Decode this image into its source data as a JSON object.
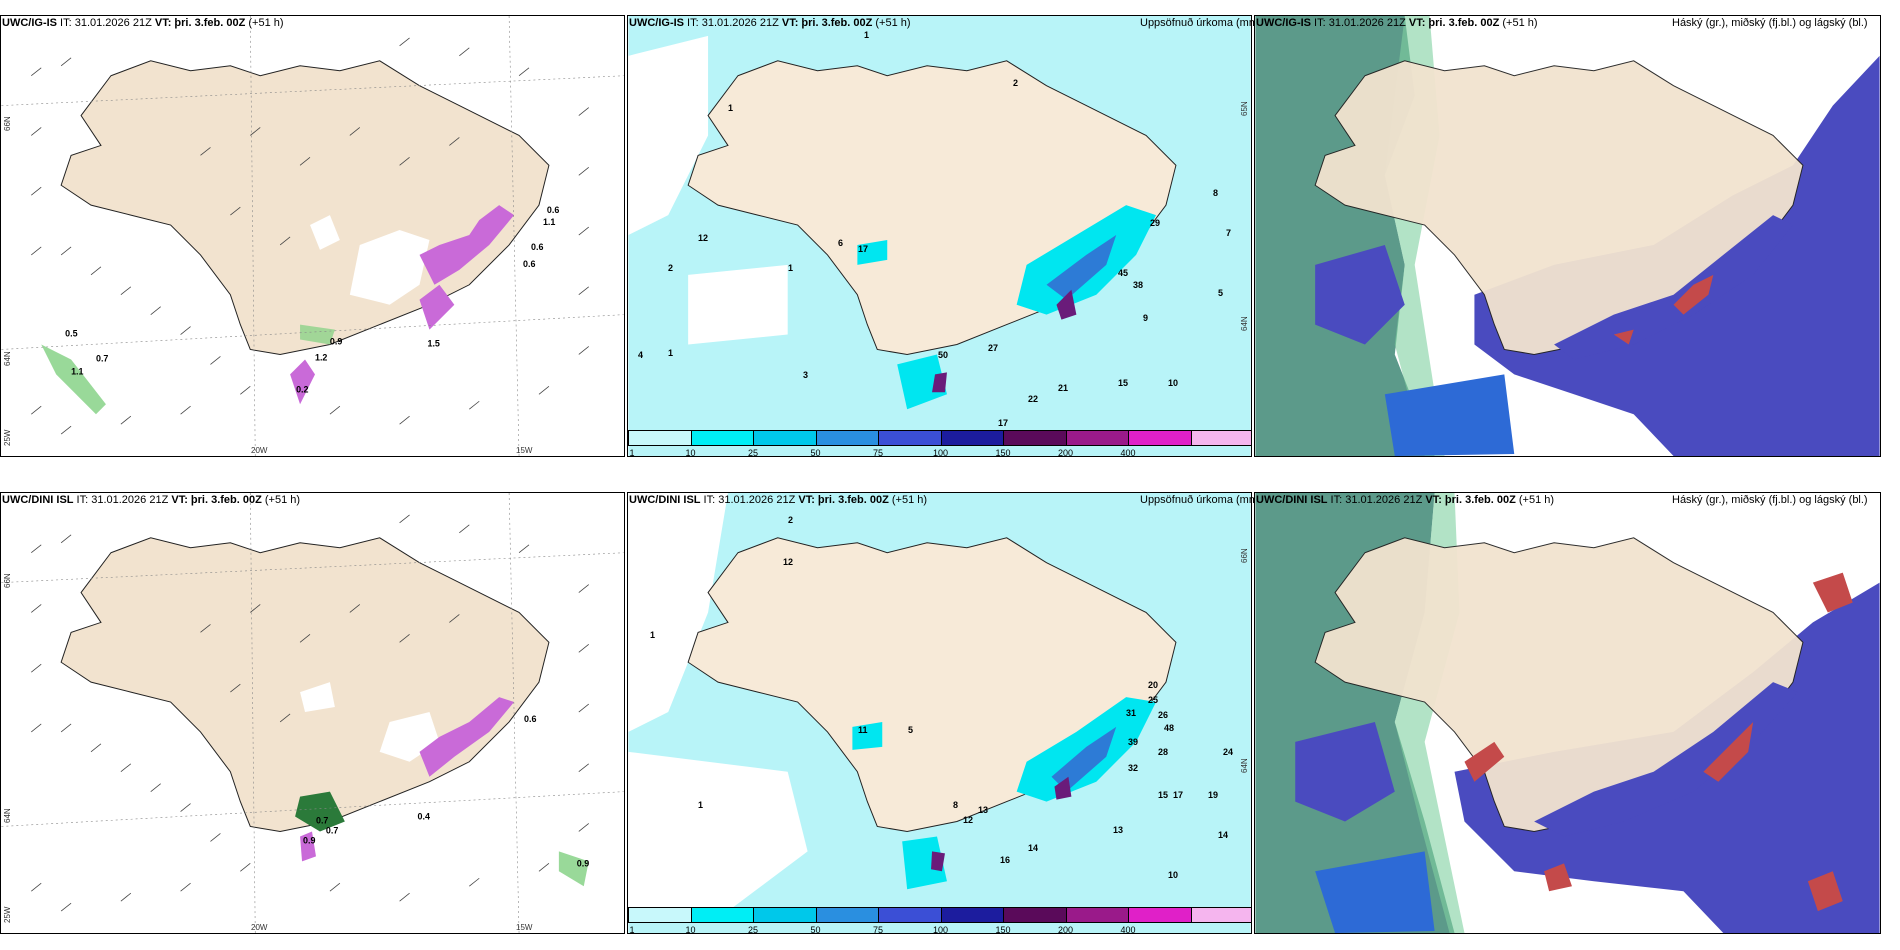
{
  "colors": {
    "land": "#f2e3cf",
    "sea_precip_light": "#b8f4f8",
    "precip_cyan": "#00e6f0",
    "precip_blue": "#2d7bd6",
    "precip_purple": "#6a1b7a",
    "precip_magenta": "#e52bd6",
    "cloud_high": "#5c9a8a",
    "cloud_mid": "#4a4bbf",
    "cloud_low": "#c44a4a",
    "snow_pink": "#c96ad8",
    "green_precip": "#7fd07f"
  },
  "rows": [
    {
      "model": "UWC/IG-IS",
      "panels": [
        {
          "title_model": "UWC/IG-IS",
          "it_label": " IT: 31.01.2026 21Z ",
          "vt_label": "VT: þri. 3.feb. 00Z",
          "lead": " (+51 h)",
          "right_title": "",
          "axis": {
            "lat_top": "66N",
            "lat_mid": "64N",
            "lon_a": "25W",
            "lon_b": "20W",
            "lon_c": "15W"
          },
          "values": [
            "0.5",
            "0.7",
            "1.1",
            "0.2",
            "1.2",
            "0.6",
            "1.1",
            "1.5",
            "0.9",
            "0.6",
            "0.6"
          ]
        },
        {
          "title_model": "UWC/IG-IS",
          "it_label": " IT: 31.01.2026 21Z ",
          "vt_label": "VT: þri. 3.feb. 00Z",
          "lead": " (+51 h)",
          "right_title": "Uppsöfnuð úrkoma (mm)",
          "axis": {
            "lat_top": "65N",
            "lat_mid": "64N"
          },
          "values": [
            "1",
            "1",
            "2",
            "1",
            "1",
            "6",
            "17",
            "12",
            "29",
            "27",
            "50",
            "45",
            "38",
            "22",
            "21",
            "15",
            "17",
            "10",
            "9",
            "8",
            "7",
            "5",
            "4",
            "3",
            "2"
          ]
        },
        {
          "title_model": "UWC/IG-IS",
          "it_label": " IT: 31.01.2026 21Z ",
          "vt_label": "VT: þri. 3.feb. 00Z",
          "lead": " (+51 h)",
          "right_title": "Háský (gr.), miðský (fj.bl.) og lágský (bl.)"
        }
      ]
    },
    {
      "model": "UWC/DINI ISL",
      "panels": [
        {
          "title_model": "UWC/DINI ISL",
          "it_label": " IT: 31.01.2026 21Z ",
          "vt_label": "VT: þri. 3.feb. 00Z",
          "lead": " (+51 h)",
          "right_title": "",
          "axis": {
            "lat_top": "66N",
            "lat_mid": "64N",
            "lon_a": "25W",
            "lon_b": "20W",
            "lon_c": "15W"
          },
          "values": [
            "0.7",
            "0.7",
            "0.9",
            "0.9",
            "0.4",
            "0.6"
          ]
        },
        {
          "title_model": "UWC/DINI ISL",
          "it_label": " IT: 31.01.2026 21Z ",
          "vt_label": "VT: þri. 3.feb. 00Z",
          "lead": " (+51 h)",
          "right_title": "Uppsöfnuð úrkoma (mm)",
          "axis": {
            "lat_top": "66N",
            "lat_mid": "64N"
          },
          "values": [
            "2",
            "1",
            "12",
            "11",
            "5",
            "1",
            "8",
            "13",
            "12",
            "20",
            "25",
            "31",
            "48",
            "39",
            "26",
            "32",
            "28",
            "24",
            "19",
            "17",
            "15",
            "14",
            "13",
            "10",
            "16",
            "14"
          ]
        },
        {
          "title_model": "UWC/DINI ISL",
          "it_label": " IT: 31.01.2026 21Z ",
          "vt_label": "VT: þri. 3.feb. 00Z",
          "lead": " (+51 h)",
          "right_title": "Háský (gr.), miðský (fj.bl.) og lágský (bl.)"
        }
      ]
    }
  ],
  "colorbar": {
    "ticks": [
      "1",
      "10",
      "25",
      "50",
      "75",
      "100",
      "150",
      "200",
      "400"
    ],
    "colors": [
      "#c8f8fb",
      "#00eef5",
      "#00c8ea",
      "#2a8fe0",
      "#3b4fd6",
      "#1c1c9e",
      "#5a0a5a",
      "#9a1a8a",
      "#e020c8",
      "#f5b5ee"
    ]
  }
}
